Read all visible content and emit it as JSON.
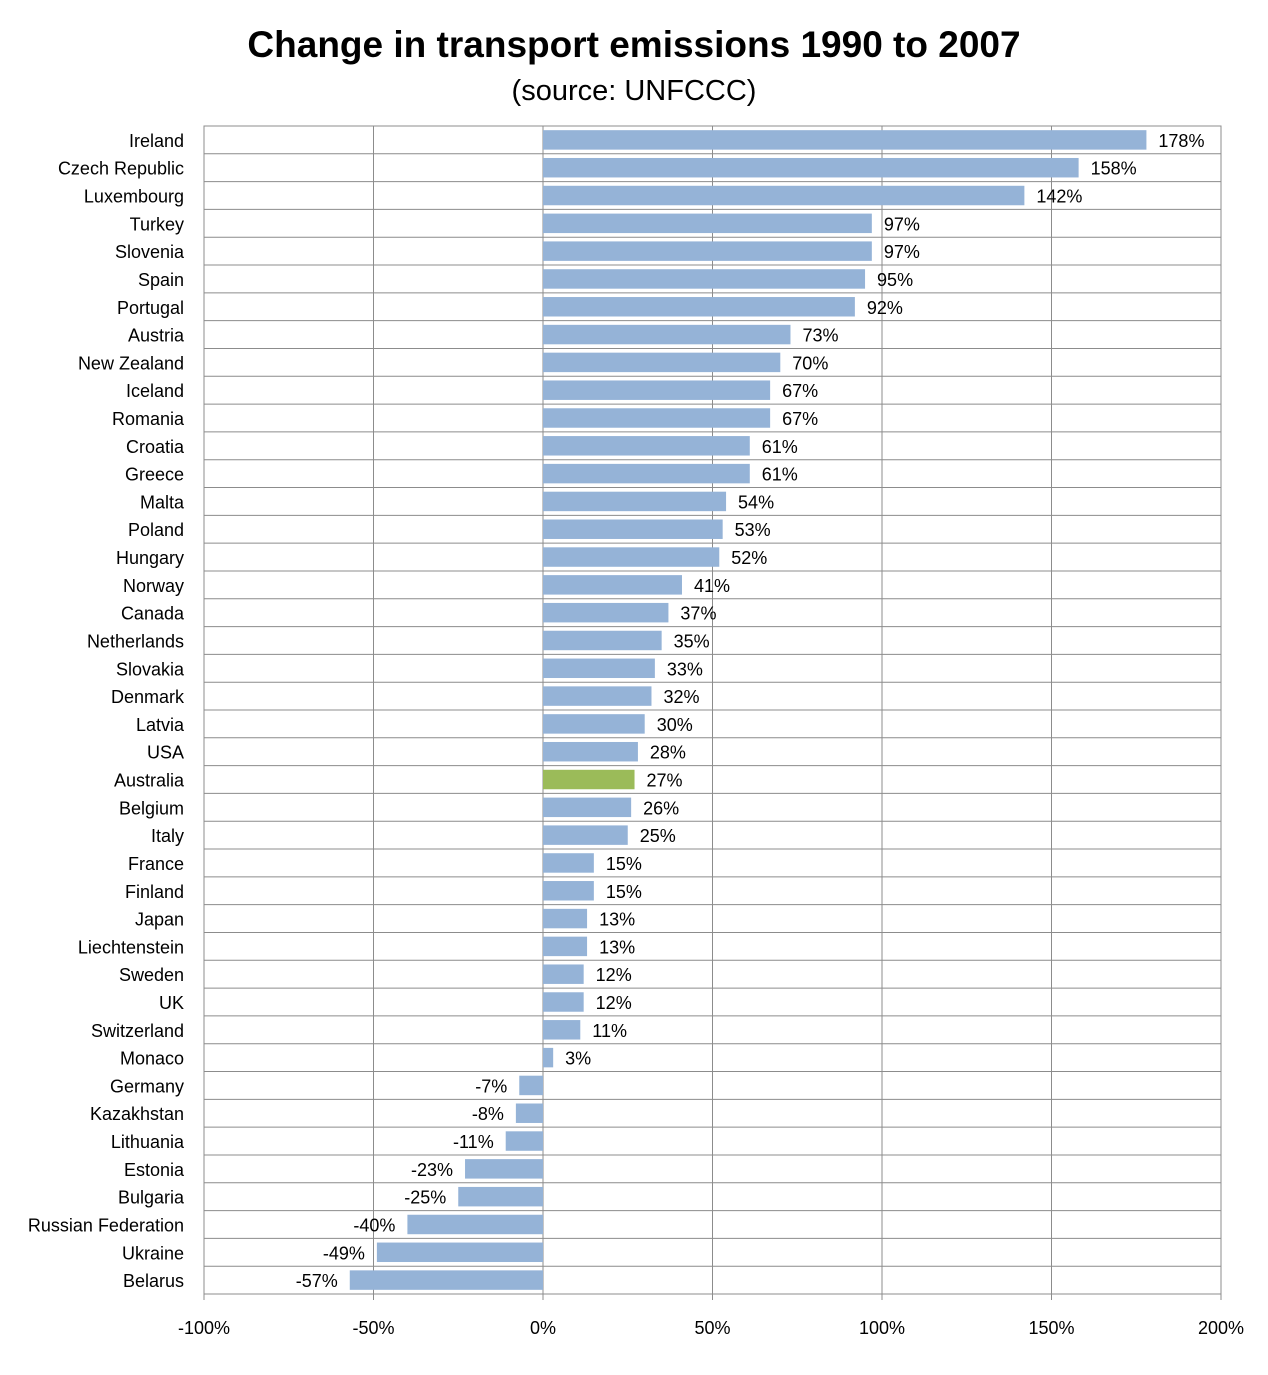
{
  "chart_data": {
    "type": "bar",
    "orientation": "horizontal",
    "title": "Change in transport emissions 1990 to 2007",
    "subtitle": "(source: UNFCCC)",
    "xlabel": "",
    "ylabel": "",
    "xlim": [
      -100,
      200
    ],
    "xticks": [
      -100,
      -50,
      0,
      50,
      100,
      150,
      200
    ],
    "tick_labels": [
      "-100%",
      "-50%",
      "0%",
      "50%",
      "100%",
      "150%",
      "200%"
    ],
    "grid": true,
    "legend": "none",
    "bar_color": "#95b3d7",
    "highlight_color": "#9bbb59",
    "highlight_category": "Australia",
    "categories": [
      "Ireland",
      "Czech Republic",
      "Luxembourg",
      "Turkey",
      "Slovenia",
      "Spain",
      "Portugal",
      "Austria",
      "New Zealand",
      "Iceland",
      "Romania",
      "Croatia",
      "Greece",
      "Malta",
      "Poland",
      "Hungary",
      "Norway",
      "Canada",
      "Netherlands",
      "Slovakia",
      "Denmark",
      "Latvia",
      "USA",
      "Australia",
      "Belgium",
      "Italy",
      "France",
      "Finland",
      "Japan",
      "Liechtenstein",
      "Sweden",
      "UK",
      "Switzerland",
      "Monaco",
      "Germany",
      "Kazakhstan",
      "Lithuania",
      "Estonia",
      "Bulgaria",
      "Russian Federation",
      "Ukraine",
      "Belarus"
    ],
    "values": [
      178,
      158,
      142,
      97,
      97,
      95,
      92,
      73,
      70,
      67,
      67,
      61,
      61,
      54,
      53,
      52,
      41,
      37,
      35,
      33,
      32,
      30,
      28,
      27,
      26,
      25,
      15,
      15,
      13,
      13,
      12,
      12,
      11,
      3,
      -7,
      -8,
      -11,
      -23,
      -25,
      -40,
      -49,
      -57
    ],
    "data_labels": [
      "178%",
      "158%",
      "142%",
      "97%",
      "97%",
      "95%",
      "92%",
      "73%",
      "70%",
      "67%",
      "67%",
      "61%",
      "61%",
      "54%",
      "53%",
      "52%",
      "41%",
      "37%",
      "35%",
      "33%",
      "32%",
      "30%",
      "28%",
      "27%",
      "26%",
      "25%",
      "15%",
      "15%",
      "13%",
      "13%",
      "12%",
      "12%",
      "11%",
      "3%",
      "-7%",
      "-8%",
      "-11%",
      "-23%",
      "-25%",
      "-40%",
      "-49%",
      "-57%"
    ]
  }
}
